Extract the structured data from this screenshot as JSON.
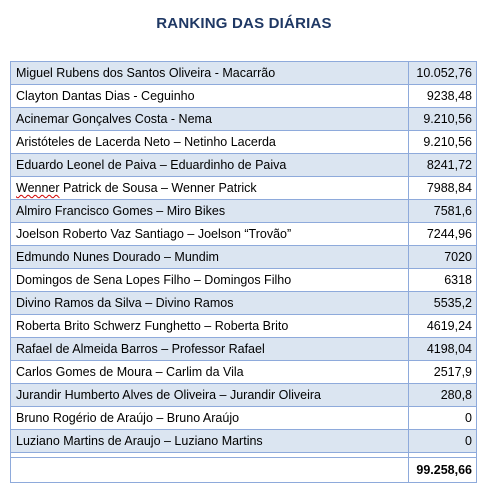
{
  "title": "RANKING DAS DIÁRIAS",
  "rows": [
    {
      "name": "Miguel Rubens dos Santos Oliveira - Macarrão",
      "value": "10.052,76"
    },
    {
      "name": "Clayton Dantas Dias - Ceguinho",
      "value": "9238,48"
    },
    {
      "name": "Acinemar Gonçalves Costa - Nema",
      "value": "9.210,56"
    },
    {
      "name": "Aristóteles de Lacerda Neto – Netinho Lacerda",
      "value": "9.210,56"
    },
    {
      "name": "Eduardo Leonel de Paiva – Eduardinho de Paiva",
      "value": "8241,72"
    },
    {
      "name_first": "Wenner",
      "name_rest": " Patrick de Sousa – ",
      "name_second": "Wenner",
      "name_end": " Patrick",
      "value": "7988,84"
    },
    {
      "name": "Almiro Francisco Gomes – Miro Bikes",
      "value": "7581,6"
    },
    {
      "name": "Joelson Roberto Vaz Santiago – Joelson “Trovão”",
      "value": "7244,96"
    },
    {
      "name": "Edmundo Nunes Dourado – Mundim",
      "value": "7020"
    },
    {
      "name": "Domingos de Sena Lopes Filho – Domingos Filho",
      "value": "6318"
    },
    {
      "name": "Divino Ramos da Silva – Divino Ramos",
      "value": "5535,2"
    },
    {
      "name": "Roberta Brito Schwerz Funghetto – Roberta Brito",
      "value": "4619,24"
    },
    {
      "name": "Rafael de Almeida Barros – Professor Rafael",
      "value": "4198,04"
    },
    {
      "name": "Carlos Gomes de Moura – Carlim da Vila",
      "value": "2517,9"
    },
    {
      "name": " Jurandir Humberto Alves de Oliveira – Jurandir Oliveira",
      "value": "280,8"
    },
    {
      "name": "Bruno Rogério de Araújo – Bruno Araújo",
      "value": "0"
    },
    {
      "name": "Luziano Martins de Araujo – Luziano Martins",
      "value": "0"
    }
  ],
  "total": {
    "label": "",
    "value": "99.258,66"
  },
  "colors": {
    "title": "#1f3864",
    "shaded_row": "#dbe5f1",
    "border": "#8eaadb"
  }
}
